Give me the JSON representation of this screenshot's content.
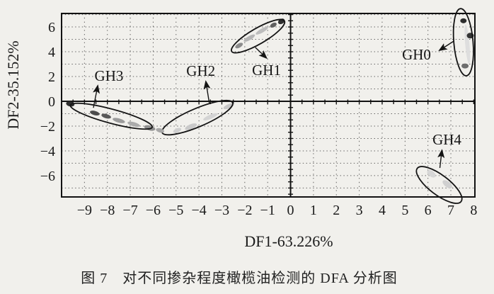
{
  "figure": {
    "caption": "图 7　对不同掺杂程度橄榄油检测的 DFA 分析图"
  },
  "chart_data": {
    "type": "scatter",
    "title": "",
    "xlabel": "DF1-63.226%",
    "ylabel": "DF2-35.152%",
    "xlim": [
      -10,
      8.05
    ],
    "ylim": [
      -7.72,
      7.09
    ],
    "x_ticks": [
      -9,
      -8,
      -7,
      -6,
      -5,
      -4,
      -3,
      -2,
      -1,
      0,
      1,
      2,
      3,
      4,
      5,
      6,
      7,
      8
    ],
    "y_ticks": [
      6,
      4,
      2,
      0,
      -2,
      -4,
      -6
    ],
    "grid_x": [
      -9,
      -8,
      -7,
      -6,
      -5,
      -4,
      -3,
      -2,
      -1,
      1,
      2,
      3,
      4,
      5,
      6,
      7
    ],
    "grid_y": [
      -7,
      -6,
      -5,
      -4,
      -3,
      -2,
      -1,
      1,
      2,
      3,
      4,
      5,
      6,
      7
    ],
    "grid": "dotted, 1-unit spacing, solid axes at x=0 and y=0 with 0.5-unit tick marks",
    "legend_position": "none",
    "groups": [
      {
        "name": "GH0",
        "label": "GH0",
        "label_pos": [
          5.5,
          3.77
        ],
        "ellipse": {
          "cx": 7.55,
          "cy": 4.77,
          "rx": 0.42,
          "ry": 2.72,
          "rot": -5
        },
        "arrow": {
          "from": [
            7.13,
            4.86
          ],
          "to": [
            6.5,
            4.11
          ]
        },
        "points": [
          [
            7.72,
            4.6,
            "#dedede",
            3,
            28,
            -5
          ],
          [
            7.55,
            6.5,
            "#2d2d2d",
            4.5,
            3.5,
            0
          ],
          [
            7.85,
            5.3,
            "#343434",
            5,
            4,
            0
          ],
          [
            7.62,
            2.85,
            "#6e6e6e",
            5,
            3.5,
            0
          ]
        ]
      },
      {
        "name": "GH1",
        "label": "GH1",
        "label_pos": [
          -1.05,
          2.51
        ],
        "ellipse": {
          "cx": -1.42,
          "cy": 5.26,
          "rx": 1.33,
          "ry": 0.63,
          "rot": -30
        },
        "arrow": {
          "from": [
            -1.54,
            4.35
          ],
          "to": [
            -1.05,
            3.49
          ]
        },
        "points": [
          [
            -1.25,
            5.7,
            "#bdbdbd",
            10,
            2.8,
            -30
          ],
          [
            -1.8,
            5.1,
            "#b5b5b5",
            9,
            2.8,
            -30
          ],
          [
            -2.25,
            4.5,
            "#8c8c8c",
            6,
            3,
            -30
          ],
          [
            -0.4,
            6.45,
            "#2f2f2f",
            5,
            3.5,
            -30
          ],
          [
            -0.75,
            6.15,
            "#606060",
            5,
            3,
            -30
          ]
        ]
      },
      {
        "name": "GH2",
        "label": "GH2",
        "label_pos": [
          -3.92,
          2.46
        ],
        "ellipse": {
          "cx": -4.07,
          "cy": -1.32,
          "rx": 1.67,
          "ry": 0.74,
          "rot": -23
        },
        "arrow": {
          "from": [
            -3.55,
            -0.12
          ],
          "to": [
            -3.7,
            1.6
          ]
        },
        "points": [
          [
            -2.7,
            -0.4,
            "#c6c6c6",
            8,
            3,
            -23
          ],
          [
            -3.5,
            -1.25,
            "#d4d4d4",
            11,
            3,
            -23
          ],
          [
            -4.35,
            -2.05,
            "#c9c9c9",
            9,
            3.5,
            -23
          ],
          [
            -4.95,
            -2.35,
            "#cfcfcf",
            6,
            3,
            -23
          ]
        ]
      },
      {
        "name": "GH3",
        "label": "GH3",
        "label_pos": [
          -7.93,
          2.06
        ],
        "ellipse": {
          "cx": -7.83,
          "cy": -1.2,
          "rx": 1.85,
          "ry": 0.57,
          "rot": 15
        },
        "arrow": {
          "from": [
            -8.61,
            -0.52
          ],
          "to": [
            -8.42,
            1.26
          ]
        },
        "points": [
          [
            -9.62,
            -0.22,
            "#2e2e2e",
            6,
            3.5,
            10
          ],
          [
            -8.55,
            -0.95,
            "#4c4c4c",
            7,
            3,
            15
          ],
          [
            -8.05,
            -1.2,
            "#585858",
            7,
            3,
            15
          ],
          [
            -7.5,
            -1.55,
            "#9c9c9c",
            9,
            3,
            15
          ],
          [
            -6.85,
            -1.85,
            "#ababab",
            9,
            3,
            15
          ],
          [
            -6.15,
            -2.15,
            "#8f8f8f",
            8,
            3.5,
            15
          ],
          [
            -5.7,
            -2.35,
            "#a8a8a8",
            6,
            3,
            15
          ]
        ]
      },
      {
        "name": "GH4",
        "label": "GH4",
        "label_pos": [
          6.83,
          -3.09
        ],
        "ellipse": {
          "cx": 6.49,
          "cy": -6.75,
          "rx": 1.2,
          "ry": 0.8,
          "rot": 37
        },
        "arrow": {
          "from": [
            6.52,
            -5.38
          ],
          "to": [
            6.61,
            -3.95
          ]
        },
        "points": [
          [
            6.15,
            -5.85,
            "#d6d6d6",
            7,
            4,
            37
          ],
          [
            6.85,
            -6.7,
            "#d0d0d0",
            8,
            4,
            37
          ]
        ]
      }
    ]
  }
}
